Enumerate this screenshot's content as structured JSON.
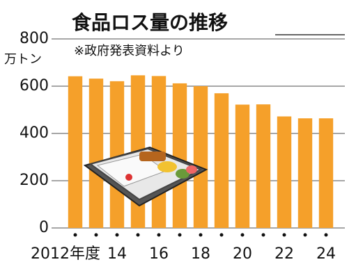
{
  "chart_data": {
    "type": "bar",
    "title": "食品ロス量の推移",
    "subtitle": "※政府発表資料より",
    "y_label": "万トン",
    "categories": [
      "2012年度",
      null,
      "14",
      null,
      "16",
      null,
      "18",
      null,
      "20",
      null,
      "22",
      null,
      "24"
    ],
    "values": [
      642,
      632,
      621,
      646,
      643,
      612,
      600,
      570,
      522,
      523,
      472,
      464,
      464
    ],
    "color": "#f5a02a",
    "ylim": [
      0,
      800
    ],
    "yticks": [
      0,
      200,
      400,
      600,
      800
    ],
    "grid": true
  }
}
